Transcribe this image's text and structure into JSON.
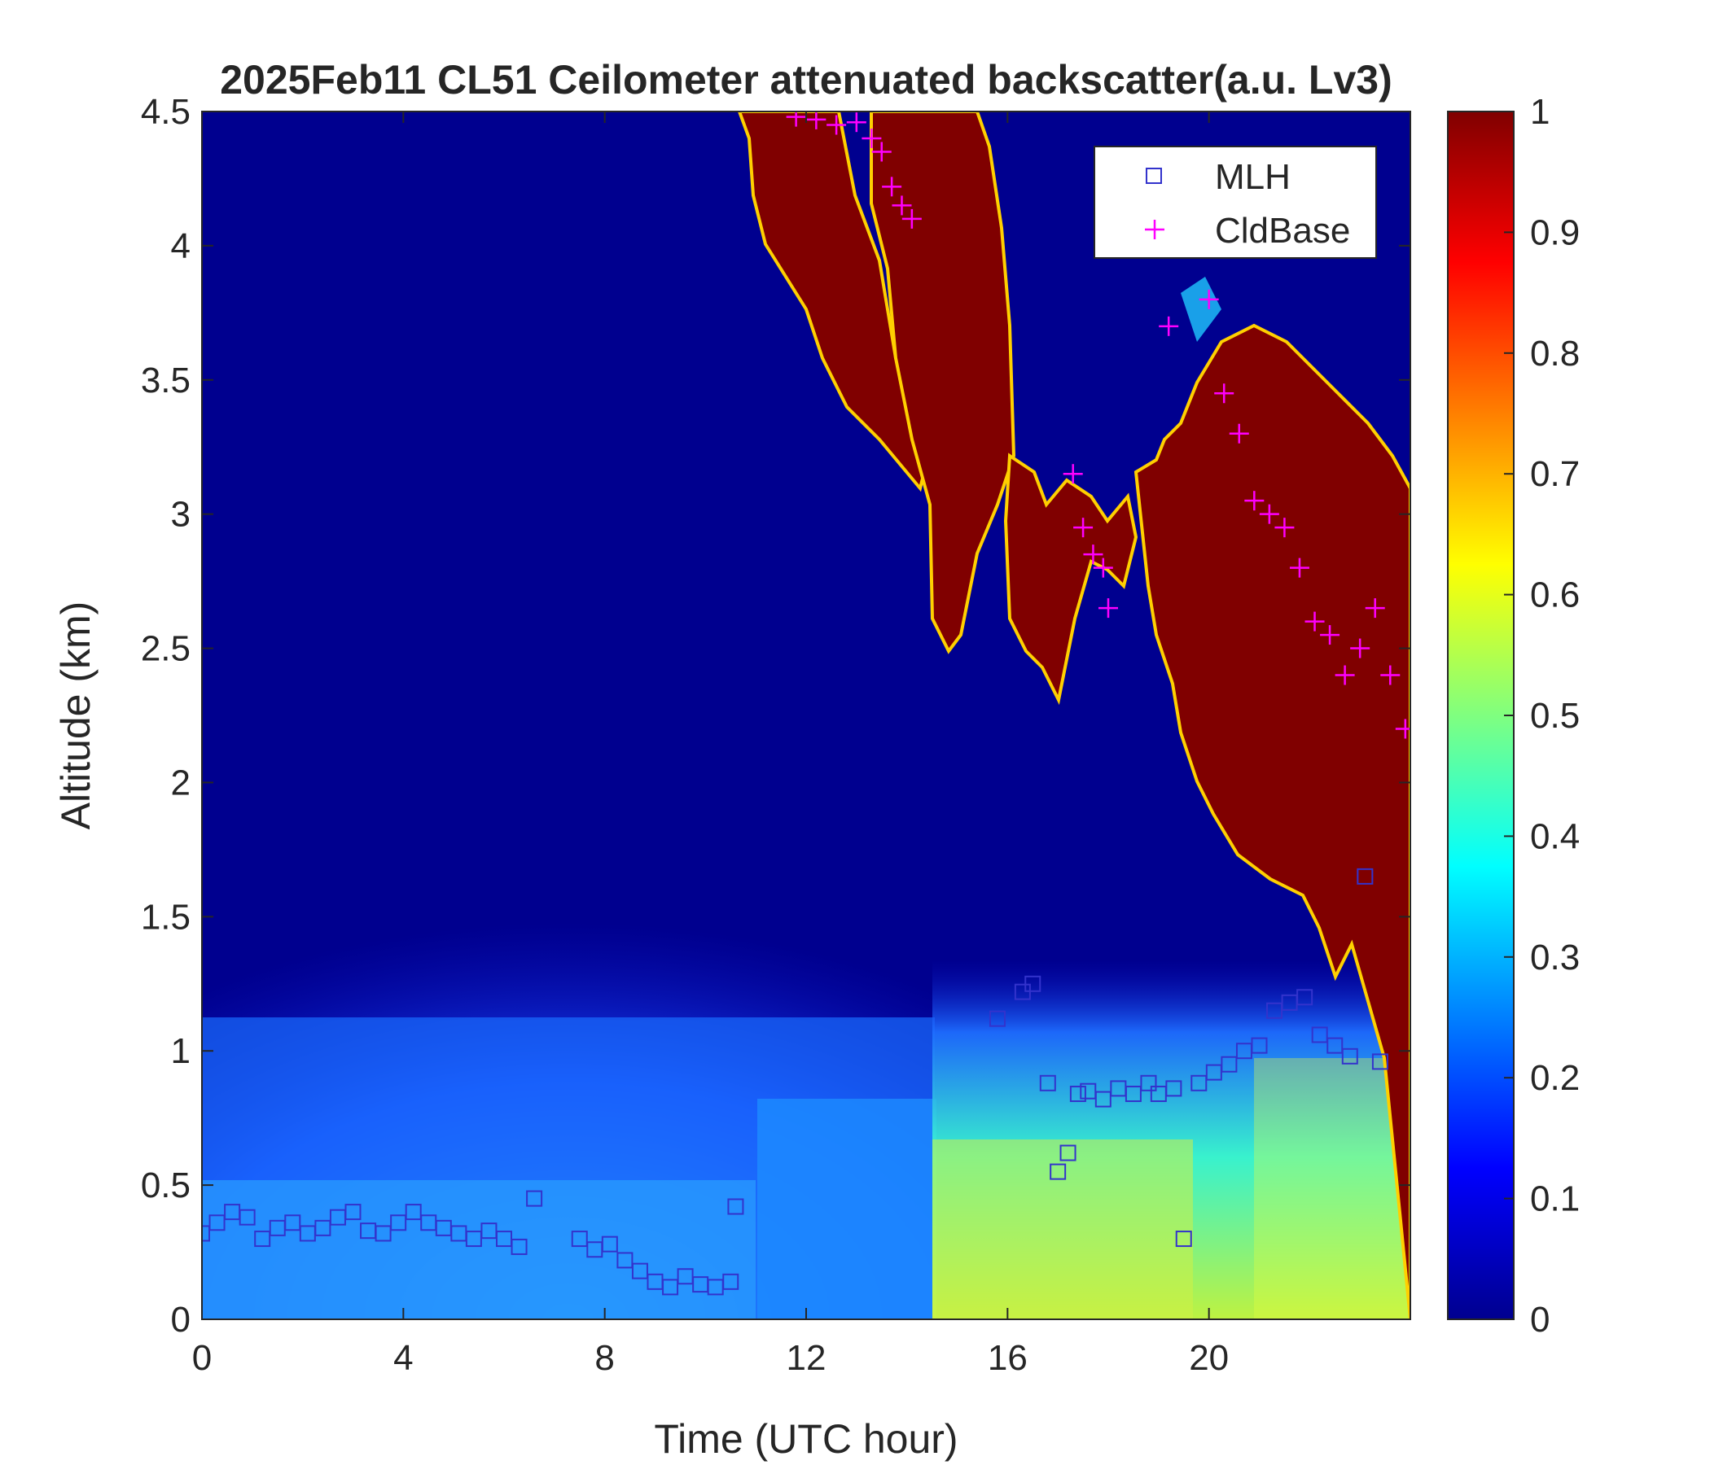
{
  "chart_data": {
    "type": "heatmap",
    "title": "2025Feb11 CL51 Ceilometer attenuated backscatter(a.u. Lv3)",
    "xlabel": "Time (UTC hour)",
    "ylabel": "Altitude (km)",
    "xlim": [
      0,
      24
    ],
    "ylim": [
      0,
      4.5
    ],
    "xticks": [
      0,
      4,
      8,
      12,
      16,
      20
    ],
    "yticks": [
      0,
      0.5,
      1,
      1.5,
      2,
      2.5,
      3,
      3.5,
      4,
      4.5
    ],
    "colorbar": {
      "colormap": "jet",
      "range": [
        0,
        1
      ],
      "ticks": [
        0,
        0.1,
        0.2,
        0.3,
        0.4,
        0.5,
        0.6,
        0.7,
        0.8,
        0.9,
        1
      ]
    },
    "legend": {
      "position": "top-right",
      "entries": [
        {
          "label": "MLH",
          "marker": "square",
          "color": "#3333cc"
        },
        {
          "label": "CldBase",
          "marker": "plus",
          "color": "#ff00ff"
        }
      ]
    },
    "series": [
      {
        "name": "MLH",
        "x": [
          0,
          0.3,
          0.6,
          0.9,
          1.2,
          1.5,
          1.8,
          2.1,
          2.4,
          2.7,
          3.0,
          3.3,
          3.6,
          3.9,
          4.2,
          4.5,
          4.8,
          5.1,
          5.4,
          5.7,
          6.0,
          6.3,
          6.6,
          7.5,
          7.8,
          8.1,
          8.4,
          8.7,
          9.0,
          9.3,
          9.6,
          9.9,
          10.2,
          10.5,
          10.6,
          15.8,
          16.3,
          16.5,
          16.8,
          17.0,
          17.2,
          17.4,
          17.6,
          17.9,
          18.2,
          18.5,
          18.8,
          19.0,
          19.3,
          19.5,
          19.8,
          20.1,
          20.4,
          20.7,
          21.0,
          21.3,
          21.6,
          21.9,
          22.2,
          22.5,
          22.8,
          23.1,
          23.4
        ],
        "values": [
          0.32,
          0.36,
          0.4,
          0.38,
          0.3,
          0.34,
          0.36,
          0.32,
          0.34,
          0.38,
          0.4,
          0.33,
          0.32,
          0.36,
          0.4,
          0.36,
          0.34,
          0.32,
          0.3,
          0.33,
          0.3,
          0.27,
          0.45,
          0.3,
          0.26,
          0.28,
          0.22,
          0.18,
          0.14,
          0.12,
          0.16,
          0.13,
          0.12,
          0.14,
          0.42,
          1.12,
          1.22,
          1.25,
          0.88,
          0.55,
          0.62,
          0.84,
          0.85,
          0.82,
          0.86,
          0.84,
          0.88,
          0.84,
          0.86,
          0.3,
          0.88,
          0.92,
          0.95,
          1.0,
          1.02,
          1.15,
          1.18,
          1.2,
          1.06,
          1.02,
          0.98,
          1.65,
          0.96
        ]
      },
      {
        "name": "CldBase",
        "x": [
          11.8,
          12.2,
          12.6,
          13.0,
          13.3,
          13.5,
          13.7,
          13.9,
          14.1,
          17.3,
          17.5,
          17.7,
          17.9,
          18.0,
          19.2,
          20.0,
          20.3,
          20.6,
          20.9,
          21.2,
          21.5,
          21.8,
          22.1,
          22.4,
          22.7,
          23.0,
          23.3,
          23.6,
          23.9
        ],
        "values": [
          4.48,
          4.47,
          4.45,
          4.46,
          4.4,
          4.35,
          4.22,
          4.15,
          4.1,
          3.15,
          2.95,
          2.85,
          2.8,
          2.65,
          3.7,
          3.8,
          3.45,
          3.3,
          3.05,
          3.0,
          2.95,
          2.8,
          2.6,
          2.55,
          2.4,
          2.5,
          2.65,
          2.4,
          2.2
        ]
      }
    ]
  }
}
